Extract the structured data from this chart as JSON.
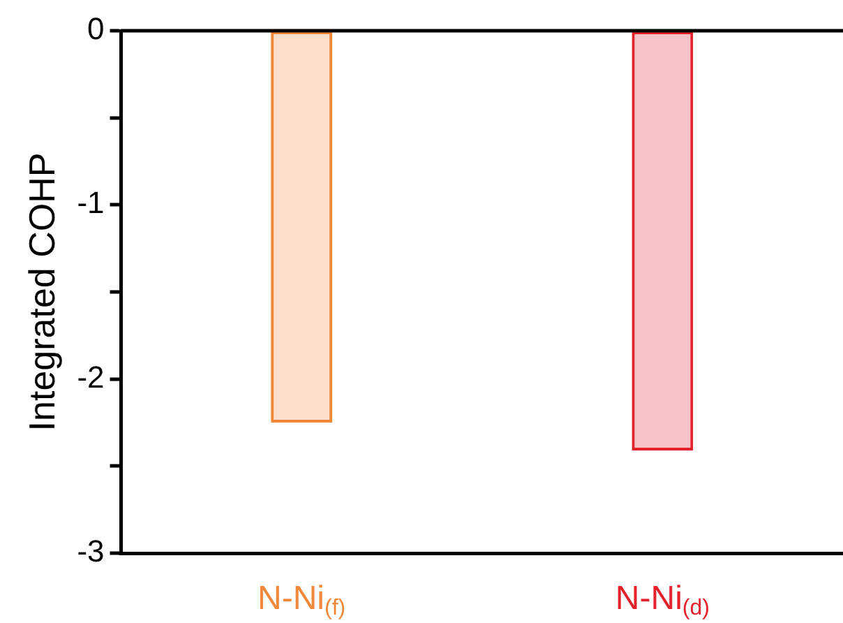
{
  "chart_data": {
    "type": "bar",
    "ylabel": "Integrated COHP",
    "categories": [
      "N-Ni$_{(f)}$",
      "N-Ni$_{(d)}$"
    ],
    "values": [
      -2.25,
      -2.41
    ],
    "colors": [
      "#f0883a",
      "#e3222c"
    ],
    "ylim": [
      -3,
      0
    ],
    "yticks": [
      0,
      {
        "value": -0.5,
        "label": null
      },
      -1,
      {
        "value": -1.5,
        "label": null
      },
      -2,
      {
        "value": -2.5,
        "label": null
      },
      -3
    ],
    "grid": false,
    "legend": false
  }
}
